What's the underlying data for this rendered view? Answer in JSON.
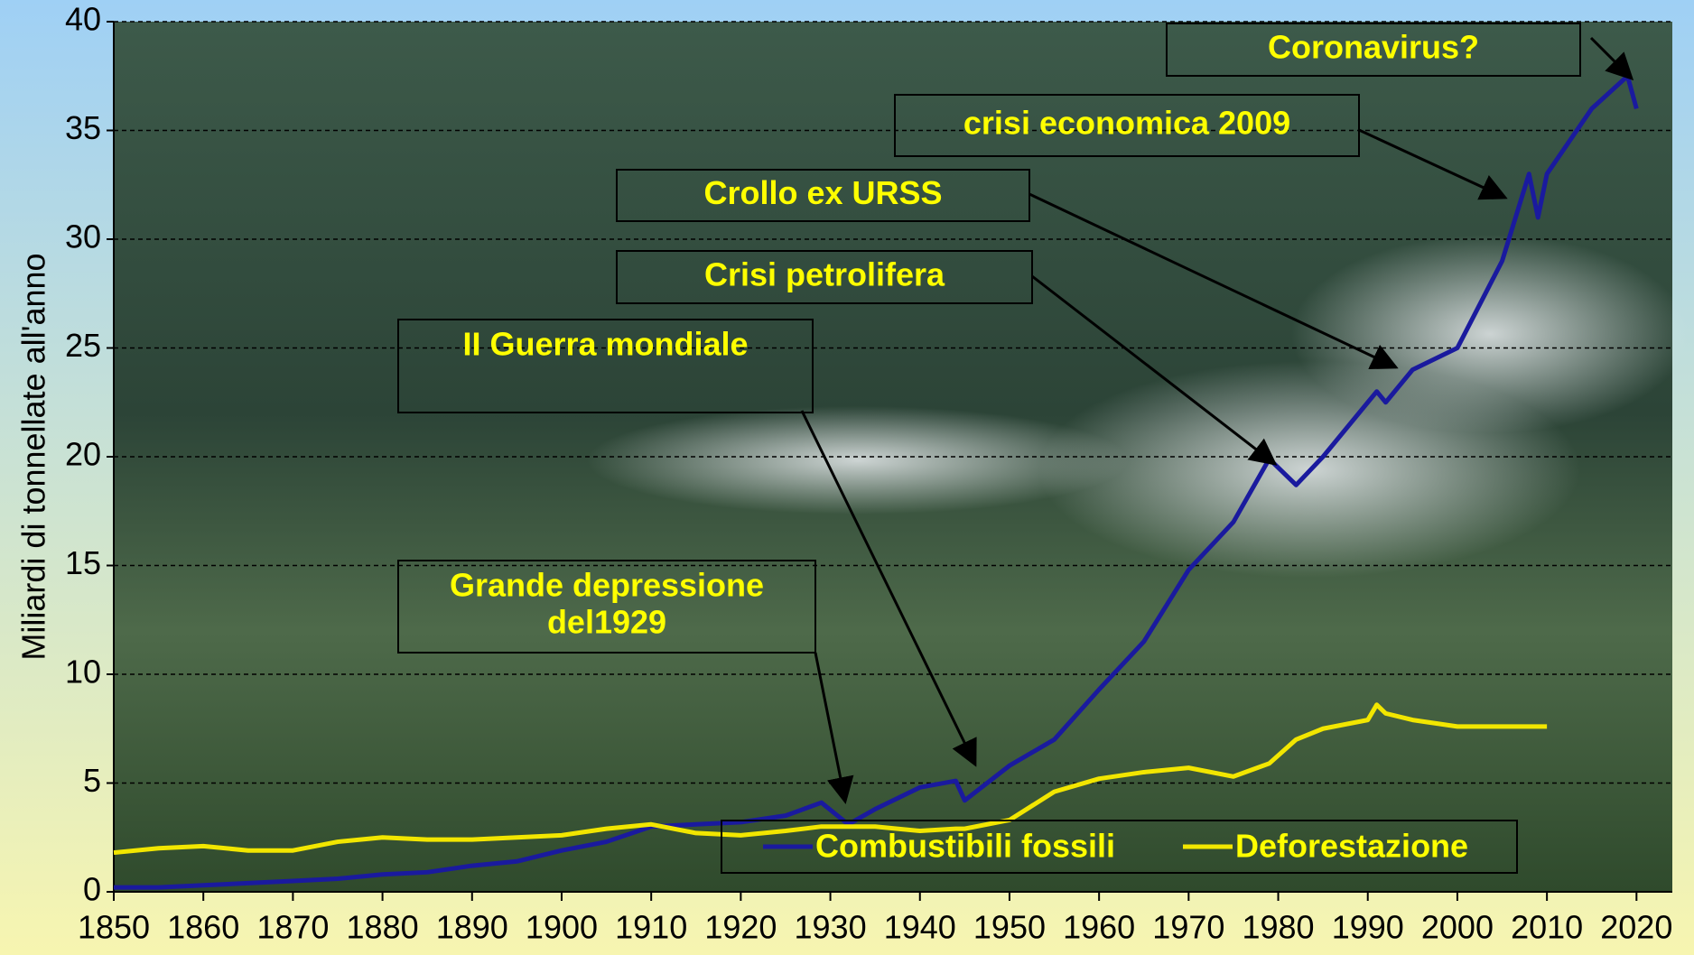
{
  "chart_data": {
    "type": "line",
    "y_label": "Miliardi di tonnellate all'anno",
    "x": [
      1850,
      1855,
      1860,
      1865,
      1870,
      1875,
      1880,
      1885,
      1890,
      1895,
      1900,
      1905,
      1910,
      1915,
      1920,
      1925,
      1929,
      1932,
      1935,
      1940,
      1944,
      1945,
      1950,
      1955,
      1960,
      1965,
      1970,
      1975,
      1979,
      1982,
      1985,
      1990,
      1991,
      1992,
      1995,
      2000,
      2005,
      2008,
      2009,
      2010,
      2015,
      2019,
      2020
    ],
    "series": [
      {
        "name": "Combustibili fossili",
        "color": "#1a1a9e",
        "values": [
          0.2,
          0.2,
          0.3,
          0.4,
          0.5,
          0.6,
          0.8,
          0.9,
          1.2,
          1.4,
          1.9,
          2.3,
          3.0,
          3.1,
          3.2,
          3.5,
          4.1,
          3.1,
          3.8,
          4.8,
          5.1,
          4.2,
          5.8,
          7.0,
          9.3,
          11.5,
          14.8,
          17.0,
          19.9,
          18.7,
          20.0,
          22.5,
          23.0,
          22.5,
          24.0,
          25.0,
          29.0,
          33.0,
          31.0,
          33.0,
          36.0,
          37.5,
          36.0
        ]
      },
      {
        "name": "Deforestazione",
        "color": "#f2e600",
        "values": [
          1.8,
          2.0,
          2.1,
          1.9,
          1.9,
          2.3,
          2.5,
          2.4,
          2.4,
          2.5,
          2.6,
          2.9,
          3.1,
          2.7,
          2.6,
          2.8,
          3.0,
          3.0,
          3.0,
          2.8,
          2.9,
          2.9,
          3.3,
          4.6,
          5.2,
          5.5,
          5.7,
          5.3,
          5.9,
          7.0,
          7.5,
          7.9,
          8.6,
          8.2,
          7.9,
          7.6,
          7.6,
          7.6,
          7.6,
          7.6,
          null,
          null,
          null
        ]
      }
    ],
    "xlim": [
      1850,
      2024
    ],
    "ylim": [
      0,
      40
    ],
    "xticks": [
      1850,
      1860,
      1870,
      1880,
      1890,
      1900,
      1910,
      1920,
      1930,
      1940,
      1950,
      1960,
      1970,
      1980,
      1990,
      2000,
      2010,
      2020
    ],
    "yticks": [
      0,
      5,
      10,
      15,
      20,
      25,
      30,
      35,
      40
    ],
    "grid": true,
    "annotations": [
      {
        "lines": [
          "Coronavirus?"
        ]
      },
      {
        "lines": [
          "crisi economica 2009"
        ]
      },
      {
        "lines": [
          "Crollo ex URSS"
        ]
      },
      {
        "lines": [
          "Crisi petrolifera"
        ]
      },
      {
        "lines": [
          "II Guerra mondiale"
        ]
      },
      {
        "lines": [
          "Grande depressione",
          "del1929"
        ]
      }
    ]
  }
}
